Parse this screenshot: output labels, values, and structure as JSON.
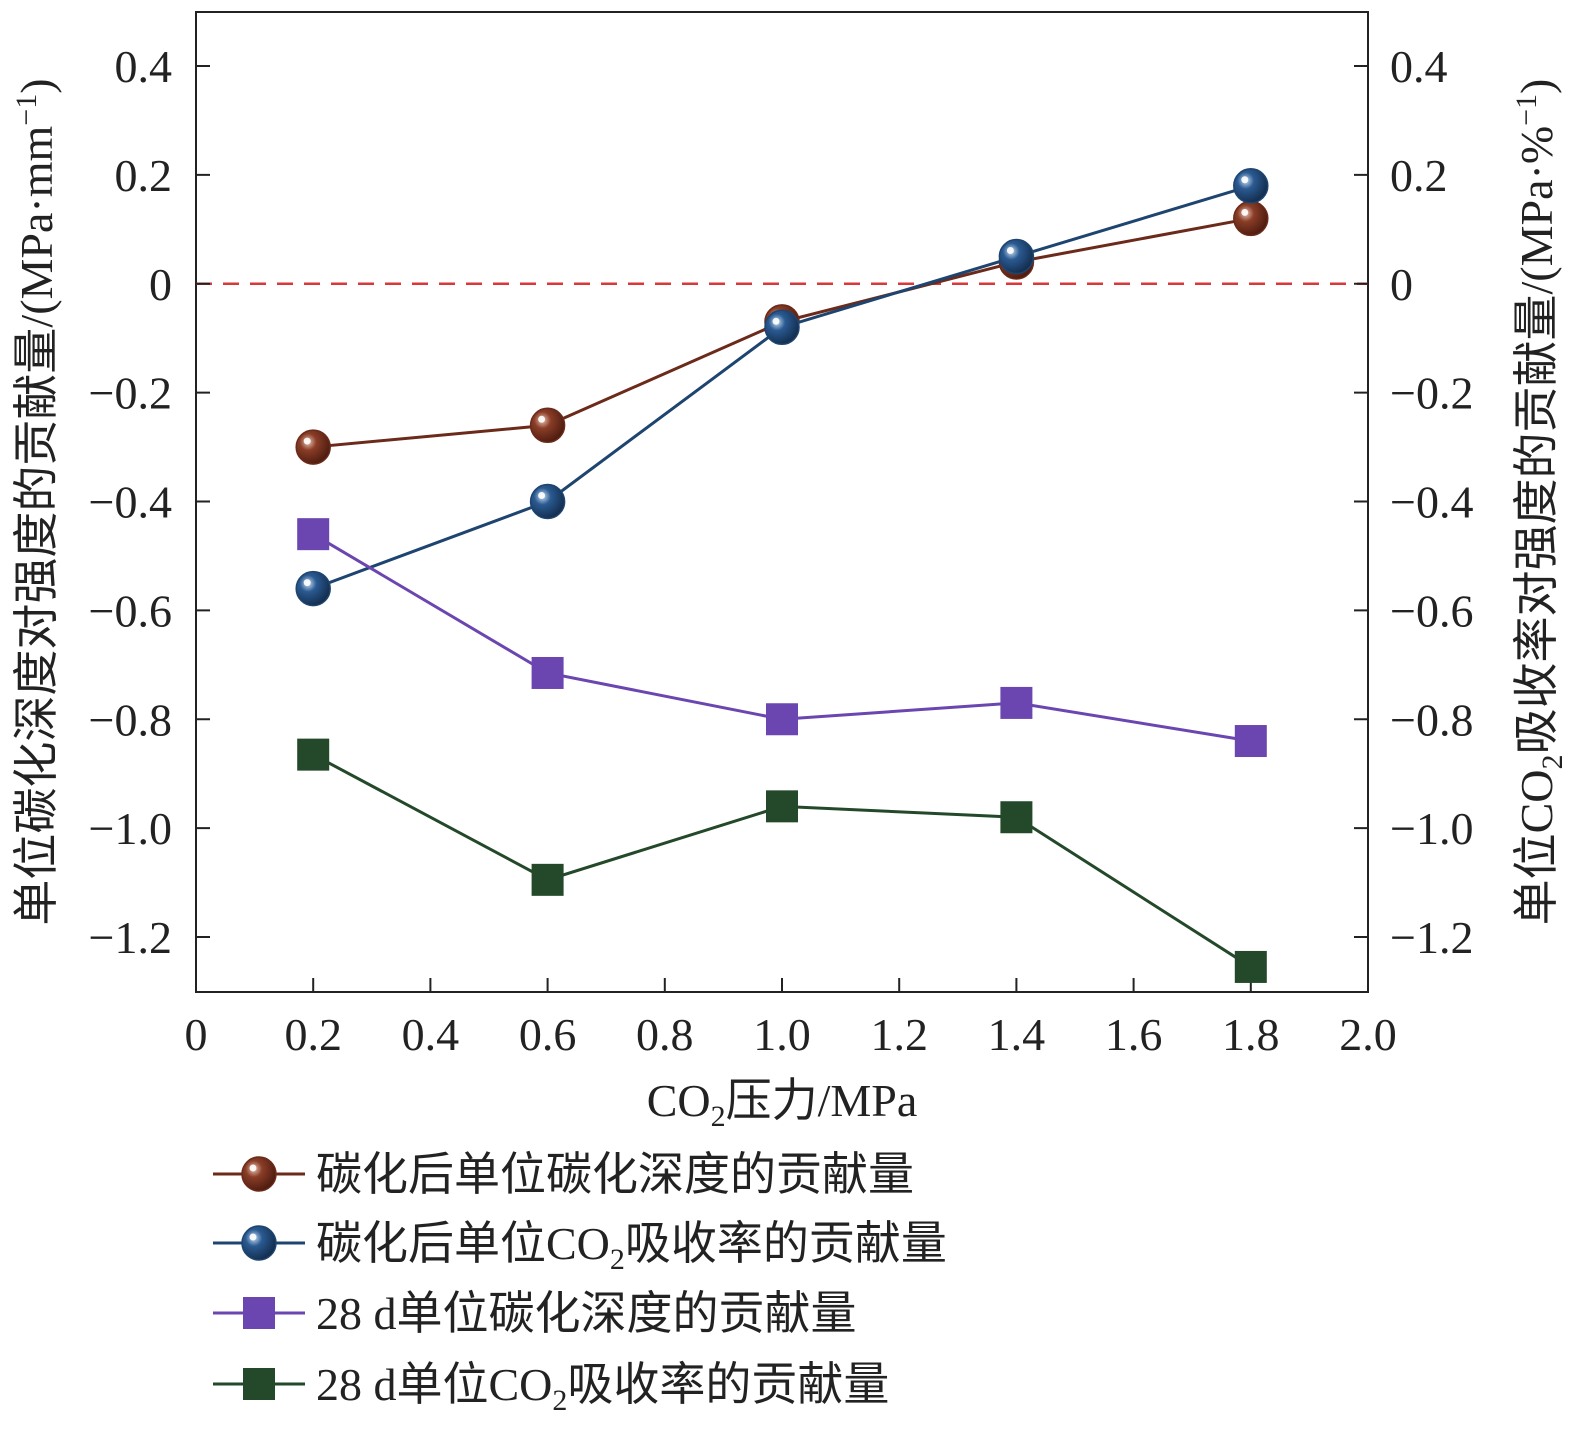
{
  "chart_data": {
    "type": "line",
    "x": [
      0.2,
      0.6,
      1.0,
      1.4,
      1.8
    ],
    "xlim": [
      0,
      2.0
    ],
    "ylim": [
      -1.3,
      0.5
    ],
    "x_ticks": [
      0,
      0.2,
      0.4,
      0.6,
      0.8,
      1.0,
      1.2,
      1.4,
      1.6,
      1.8,
      2.0
    ],
    "x_tick_labels": [
      "0",
      "0.2",
      "0.4",
      "0.6",
      "0.8",
      "1.0",
      "1.2",
      "1.4",
      "1.6",
      "1.8",
      "2.0"
    ],
    "y_ticks": [
      0.4,
      0.2,
      0,
      -0.2,
      -0.4,
      -0.6,
      -0.8,
      -1.0,
      -1.2
    ],
    "y_tick_labels": [
      "0.4",
      "0.2",
      "0",
      "−0.2",
      "−0.4",
      "−0.6",
      "−0.8",
      "−1.0",
      "−1.2"
    ],
    "xlabel": {
      "pre": "CO",
      "sub": "2",
      "post": "压力/MPa"
    },
    "ylabel_left": {
      "main": "单位碳化深度对强度的贡献量/(MPa·mm",
      "sup": "−1",
      "close": ")"
    },
    "ylabel_right": {
      "pre": "单位CO",
      "sub": "2",
      "main": "吸收率对强度的贡献量/(MPa·%",
      "sup": "−1",
      "close": ")"
    },
    "reference_line": {
      "y": 0,
      "color": "#d9383a",
      "style": "dashed"
    },
    "grid": false,
    "legend_position": "bottom",
    "series": [
      {
        "name": "碳化后单位碳化深度的贡献量",
        "name_parts": {
          "pre": "碳化后单位碳化深度的贡献量",
          "sub": "",
          "post": ""
        },
        "marker": "sphere",
        "color": "#6b2a1a",
        "values": [
          -0.3,
          -0.26,
          -0.07,
          0.04,
          0.12
        ]
      },
      {
        "name": "碳化后单位CO2吸收率的贡献量",
        "name_parts": {
          "pre": "碳化后单位CO",
          "sub": "2",
          "post": "吸收率的贡献量"
        },
        "marker": "sphere",
        "color": "#1e4470",
        "values": [
          -0.56,
          -0.4,
          -0.08,
          0.05,
          0.18
        ]
      },
      {
        "name": "28 d单位碳化深度的贡献量",
        "name_parts": {
          "pre": "28 d单位碳化深度的贡献量",
          "sub": "",
          "post": ""
        },
        "marker": "square",
        "color": "#6b46b0",
        "values": [
          -0.46,
          -0.715,
          -0.8,
          -0.77,
          -0.84
        ]
      },
      {
        "name": "28 d单位CO2吸收率的贡献量",
        "name_parts": {
          "pre": "28 d单位CO",
          "sub": "2",
          "post": "吸收率的贡献量"
        },
        "marker": "square",
        "color": "#23492a",
        "values": [
          -0.865,
          -1.095,
          -0.96,
          -0.98,
          -1.255
        ]
      }
    ]
  }
}
